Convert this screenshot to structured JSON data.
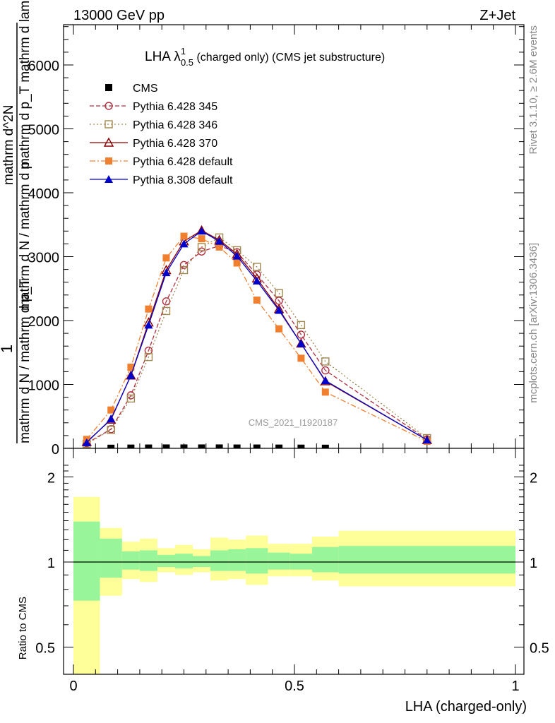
{
  "header": {
    "left": "13000 GeV pp",
    "right": "Z+Jet"
  },
  "side": {
    "rivet": "Rivet 3.1.10, ≥ 2.6M events",
    "mcplots": "mcplots.cern.ch [arXiv:1306.3436]"
  },
  "watermark": "CMS_2021_I1920187",
  "chart_data": [
    {
      "type": "line",
      "title_main": "LHA λ",
      "title_sup": "1",
      "title_sub": "0.5",
      "title_rest": " (charged only) (CMS jet substructure)",
      "ylabel_numer_lines": [
        "1",
        "mathrm d N / mathrm d p_T"
      ],
      "ylabel_denom": "mathrm d N / mathrm d p",
      "ylabel_right_numer_lines": [
        "mathrm d^2N",
        "mathrm d p_T mathrm d lambda"
      ],
      "ylabel_parts": {
        "numer_top": "mathrm d",
        "numer_sup": "2",
        "numer_after": "N",
        "denom_top": "mathrm d p",
        "denom_sub": "T",
        "denom_rest": " mathrm d lambda"
      },
      "xlim": [
        0,
        1
      ],
      "ylim": [
        0,
        7000
      ],
      "yticks": [
        0,
        1000,
        2000,
        3000,
        4000,
        5000,
        6000
      ],
      "ytick_labels": [
        "0",
        "1000",
        "2000",
        "3000",
        "4000",
        "5000",
        "6000"
      ],
      "x_bins": [
        [
          0.0,
          0.06
        ],
        [
          0.06,
          0.11
        ],
        [
          0.11,
          0.15
        ],
        [
          0.15,
          0.19
        ],
        [
          0.19,
          0.23
        ],
        [
          0.23,
          0.27
        ],
        [
          0.27,
          0.31
        ],
        [
          0.31,
          0.35
        ],
        [
          0.35,
          0.39
        ],
        [
          0.39,
          0.44
        ],
        [
          0.44,
          0.49
        ],
        [
          0.49,
          0.54
        ],
        [
          0.54,
          0.6
        ],
        [
          0.6,
          1.0
        ]
      ],
      "x": [
        0.03,
        0.085,
        0.13,
        0.17,
        0.21,
        0.25,
        0.29,
        0.33,
        0.37,
        0.415,
        0.465,
        0.515,
        0.57,
        0.8
      ],
      "series": [
        {
          "name": "CMS",
          "color": "#000000",
          "marker": "square-filled",
          "line": "none",
          "values": [
            null,
            2,
            4,
            5,
            6,
            6,
            6,
            6,
            5,
            5,
            4,
            3,
            2,
            null
          ]
        },
        {
          "name": "Pythia 6.428 345",
          "color": "#b03040",
          "marker": "circle-open",
          "line": "dashed",
          "values": [
            80,
            300,
            830,
            1530,
            2300,
            2870,
            3080,
            3170,
            3070,
            2720,
            2310,
            1780,
            1220,
            140
          ]
        },
        {
          "name": "Pythia 6.428 346",
          "color": "#a08850",
          "marker": "square-open",
          "line": "dotted",
          "values": [
            70,
            290,
            780,
            1430,
            2150,
            2790,
            3150,
            3300,
            3100,
            2840,
            2430,
            1930,
            1360,
            160
          ]
        },
        {
          "name": "Pythia 6.428 370",
          "color": "#8b0000",
          "marker": "triangle-open",
          "line": "solid",
          "values": [
            100,
            450,
            1140,
            1970,
            2790,
            3240,
            3410,
            3260,
            3040,
            2660,
            2180,
            1640,
            1050,
            130
          ]
        },
        {
          "name": "Pythia 6.428 default",
          "color": "#f08030",
          "marker": "square-filled",
          "line": "dashdot",
          "values": [
            140,
            600,
            1270,
            2180,
            2980,
            3320,
            3280,
            3150,
            2900,
            2320,
            1870,
            1410,
            880,
            110
          ]
        },
        {
          "name": "Pythia 8.308 default",
          "color": "#0000cc",
          "marker": "triangle-filled",
          "line": "solid",
          "values": [
            90,
            460,
            1140,
            1930,
            2750,
            3200,
            3400,
            3240,
            3010,
            2620,
            2160,
            1640,
            1060,
            130
          ]
        }
      ]
    },
    {
      "type": "area",
      "ylabel": "Ratio to CMS",
      "xlabel": "LHA (charged-only)",
      "xlim": [
        0,
        1
      ],
      "ylim": [
        0.35,
        2.3
      ],
      "yscale": "log",
      "yticks": [
        0.5,
        1,
        2
      ],
      "ytick_labels": [
        "0.5",
        "1",
        "2"
      ],
      "xticks": [
        0,
        0.5,
        1
      ],
      "xtick_labels": [
        "0",
        "0.5",
        "1"
      ],
      "reference_line": 1,
      "bands": {
        "x_bins": [
          [
            0.0,
            0.06
          ],
          [
            0.06,
            0.11
          ],
          [
            0.11,
            0.15
          ],
          [
            0.15,
            0.19
          ],
          [
            0.19,
            0.23
          ],
          [
            0.23,
            0.27
          ],
          [
            0.27,
            0.31
          ],
          [
            0.31,
            0.35
          ],
          [
            0.35,
            0.39
          ],
          [
            0.39,
            0.44
          ],
          [
            0.44,
            0.49
          ],
          [
            0.49,
            0.54
          ],
          [
            0.54,
            0.6
          ],
          [
            0.6,
            1.0
          ]
        ],
        "inner": [
          [
            0.73,
            1.39
          ],
          [
            0.88,
            1.21
          ],
          [
            0.94,
            1.09
          ],
          [
            0.93,
            1.1
          ],
          [
            0.96,
            1.06
          ],
          [
            0.95,
            1.07
          ],
          [
            0.96,
            1.05
          ],
          [
            0.93,
            1.1
          ],
          [
            0.93,
            1.11
          ],
          [
            0.91,
            1.12
          ],
          [
            0.94,
            1.08
          ],
          [
            0.94,
            1.07
          ],
          [
            0.92,
            1.13
          ],
          [
            0.91,
            1.14
          ]
        ],
        "outer": [
          [
            0.35,
            1.7
          ],
          [
            0.76,
            1.32
          ],
          [
            0.87,
            1.18
          ],
          [
            0.85,
            1.21
          ],
          [
            0.92,
            1.12
          ],
          [
            0.9,
            1.15
          ],
          [
            0.92,
            1.11
          ],
          [
            0.86,
            1.22
          ],
          [
            0.87,
            1.2
          ],
          [
            0.83,
            1.24
          ],
          [
            0.89,
            1.16
          ],
          [
            0.89,
            1.16
          ],
          [
            0.86,
            1.23
          ],
          [
            0.82,
            1.29
          ]
        ],
        "inner_color": "#99f599",
        "outer_color": "#ffff99"
      }
    }
  ]
}
